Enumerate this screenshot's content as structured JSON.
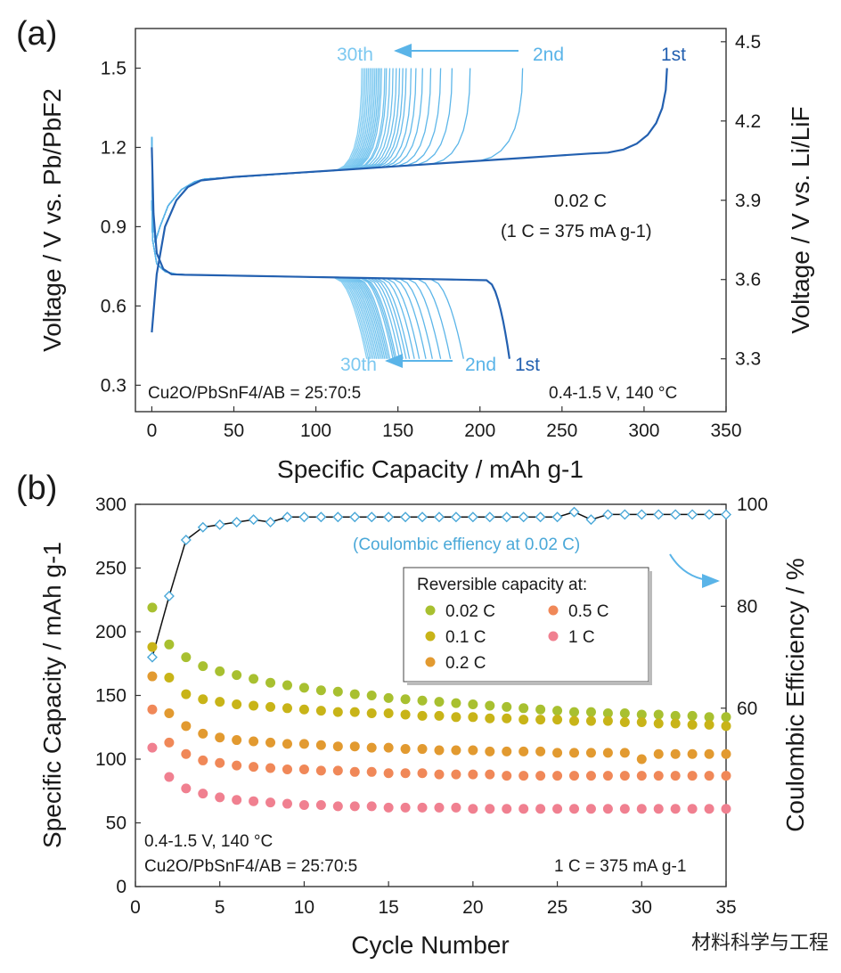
{
  "panel_a": {
    "label": "(a)",
    "chart_data": {
      "type": "line",
      "title": "",
      "xlabel": "Specific Capacity / mAh g-1",
      "ylabel_left": "Voltage / V vs. Pb/PbF2",
      "ylabel_right": "Voltage / V vs. Li/LiF",
      "xlim": [
        -10,
        350
      ],
      "ylim": [
        0.2,
        1.65
      ],
      "ylim_right": [
        3.1,
        4.55
      ],
      "x_ticks": [
        0,
        50,
        100,
        150,
        200,
        250,
        300,
        350
      ],
      "y_ticks": [
        0.3,
        0.6,
        0.9,
        1.2,
        1.5
      ],
      "y_ticks_right": [
        3.3,
        3.6,
        3.9,
        4.2,
        4.5
      ],
      "charge_end_capacities": [
        314,
        226,
        194,
        183,
        176,
        170,
        165,
        161,
        158,
        155,
        153,
        151,
        149,
        147,
        145,
        143,
        142,
        140,
        139,
        138,
        137,
        136,
        135,
        134,
        133,
        132,
        131,
        130,
        129,
        128
      ],
      "discharge_end_capacities": [
        218,
        190,
        182,
        176,
        171,
        167,
        163,
        160,
        157,
        155,
        153,
        151,
        149,
        148,
        147,
        145,
        144,
        143,
        142,
        141,
        140,
        139,
        138,
        137,
        136,
        135,
        134,
        133,
        132,
        131
      ],
      "series": [
        {
          "name": "1st",
          "color": "#2360b0"
        },
        {
          "name": "2nd",
          "color": "#5ab4e8"
        },
        {
          "name": "30th",
          "color": "#7cc8f0"
        }
      ],
      "annotations": {
        "charge_1st": "1st",
        "charge_2nd": "2nd",
        "charge_30th": "30th",
        "discharge_1st": "1st",
        "discharge_2nd": "2nd",
        "discharge_30th": "30th",
        "rate": "0.02 C",
        "rate_def": "(1 C = 375 mA g-1)",
        "composition": "Cu2O/PbSnF4/AB = 25:70:5",
        "conditions": "0.4-1.5 V, 140 °C"
      }
    }
  },
  "panel_b": {
    "label": "(b)",
    "chart_data": {
      "type": "scatter",
      "title": "",
      "xlabel": "Cycle Number",
      "ylabel_left": "Specific Capacity / mAh g-1",
      "ylabel_right": "Coulombic Efficiency / %",
      "xlim": [
        0,
        35
      ],
      "ylim": [
        0,
        300
      ],
      "ylim_right": [
        25,
        100
      ],
      "x_ticks": [
        0,
        5,
        10,
        15,
        20,
        25,
        30,
        35
      ],
      "y_ticks": [
        0,
        50,
        100,
        150,
        200,
        250,
        300
      ],
      "y_ticks_right": [
        60,
        80,
        100
      ],
      "series": [
        {
          "name": "0.02 C",
          "color": "#a8c030",
          "x": [
            1,
            2,
            3,
            4,
            5,
            6,
            7,
            8,
            9,
            10,
            11,
            12,
            13,
            14,
            15,
            16,
            17,
            18,
            19,
            20,
            21,
            22,
            23,
            24,
            25,
            26,
            27,
            28,
            29,
            30,
            31,
            32,
            33,
            34,
            35
          ],
          "values": [
            219,
            190,
            180,
            173,
            169,
            166,
            163,
            160,
            158,
            156,
            154,
            153,
            151,
            150,
            148,
            147,
            146,
            145,
            144,
            143,
            142,
            141,
            140,
            139,
            138,
            137,
            137,
            136,
            136,
            135,
            135,
            134,
            134,
            133,
            133
          ]
        },
        {
          "name": "0.1 C",
          "color": "#c8b418",
          "x": [
            1,
            2,
            3,
            4,
            5,
            6,
            7,
            8,
            9,
            10,
            11,
            12,
            13,
            14,
            15,
            16,
            17,
            18,
            19,
            20,
            21,
            22,
            23,
            24,
            25,
            26,
            27,
            28,
            29,
            30,
            31,
            32,
            33,
            34,
            35
          ],
          "values": [
            188,
            164,
            151,
            147,
            145,
            143,
            142,
            141,
            140,
            139,
            138,
            137,
            137,
            136,
            136,
            135,
            134,
            134,
            133,
            133,
            132,
            132,
            131,
            131,
            131,
            130,
            130,
            130,
            129,
            129,
            128,
            128,
            127,
            127,
            126
          ]
        },
        {
          "name": "0.2 C",
          "color": "#e29a30",
          "x": [
            1,
            2,
            3,
            4,
            5,
            6,
            7,
            8,
            9,
            10,
            11,
            12,
            13,
            14,
            15,
            16,
            17,
            18,
            19,
            20,
            21,
            22,
            23,
            24,
            25,
            26,
            27,
            28,
            29,
            30,
            31,
            32,
            33,
            34,
            35
          ],
          "values": [
            165,
            136,
            126,
            120,
            117,
            115,
            114,
            113,
            112,
            112,
            111,
            110,
            110,
            109,
            109,
            108,
            108,
            107,
            107,
            107,
            106,
            106,
            106,
            106,
            105,
            105,
            105,
            105,
            105,
            100,
            104,
            104,
            104,
            104,
            104
          ]
        },
        {
          "name": "0.5 C",
          "color": "#f08858",
          "x": [
            1,
            2,
            3,
            4,
            5,
            6,
            7,
            8,
            9,
            10,
            11,
            12,
            13,
            14,
            15,
            16,
            17,
            18,
            19,
            20,
            21,
            22,
            23,
            24,
            25,
            26,
            27,
            28,
            29,
            30,
            31,
            32,
            33,
            34,
            35
          ],
          "values": [
            139,
            113,
            104,
            99,
            97,
            95,
            94,
            93,
            92,
            92,
            91,
            91,
            90,
            90,
            89,
            89,
            89,
            88,
            88,
            88,
            88,
            87,
            87,
            87,
            87,
            87,
            87,
            87,
            87,
            87,
            87,
            87,
            87,
            87,
            87
          ]
        },
        {
          "name": "1 C",
          "color": "#f08090",
          "x": [
            1,
            2,
            3,
            4,
            5,
            6,
            7,
            8,
            9,
            10,
            11,
            12,
            13,
            14,
            15,
            16,
            17,
            18,
            19,
            20,
            21,
            22,
            23,
            24,
            25,
            26,
            27,
            28,
            29,
            30,
            31,
            32,
            33,
            34,
            35
          ],
          "values": [
            109,
            86,
            77,
            73,
            70,
            68,
            67,
            66,
            65,
            64,
            64,
            63,
            63,
            63,
            62,
            62,
            62,
            62,
            62,
            61,
            61,
            61,
            61,
            61,
            61,
            61,
            61,
            61,
            61,
            61,
            61,
            61,
            61,
            61,
            61
          ]
        },
        {
          "name": "Coulombic efficiency",
          "color": "#4aa8d8",
          "axis": "right",
          "x": [
            1,
            2,
            3,
            4,
            5,
            6,
            7,
            8,
            9,
            10,
            11,
            12,
            13,
            14,
            15,
            16,
            17,
            18,
            19,
            20,
            21,
            22,
            23,
            24,
            25,
            26,
            27,
            28,
            29,
            30,
            31,
            32,
            33,
            34,
            35
          ],
          "values": [
            70,
            82,
            93,
            95.5,
            96,
            96.5,
            97,
            96.5,
            97.5,
            97.5,
            97.5,
            97.5,
            97.5,
            97.5,
            97.5,
            97.5,
            97.5,
            97.5,
            97.5,
            97.5,
            97.5,
            97.5,
            97.5,
            97.5,
            97.5,
            98.5,
            97,
            98,
            98,
            98,
            98,
            98,
            98,
            98,
            98
          ]
        }
      ],
      "legend": {
        "title": "Reversible capacity at:",
        "items": [
          "0.02 C",
          "0.1 C",
          "0.2 C",
          "0.5 C",
          "1 C"
        ],
        "placement": "top-right"
      },
      "annotations": {
        "ce_note": "(Coulombic effiency at 0.02 C)",
        "conditions": "0.4-1.5 V, 140 °C",
        "composition": "Cu2O/PbSnF4/AB = 25:70:5",
        "rate_def": "1 C = 375 mA g-1"
      }
    }
  },
  "watermark": "材料科学与工程"
}
